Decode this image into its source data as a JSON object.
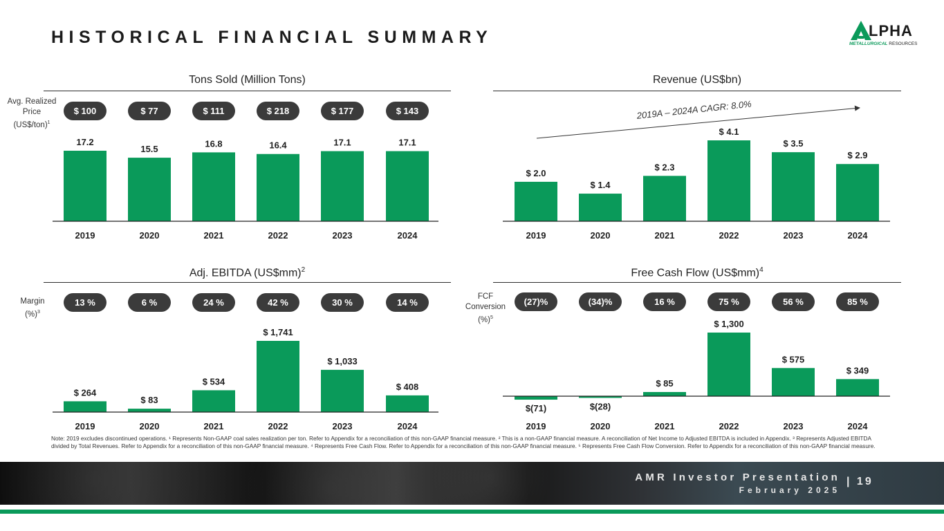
{
  "page": {
    "title": "HISTORICAL FINANCIAL SUMMARY",
    "logo_word": "LPHA",
    "logo_sub_bold": "METALLURGICAL",
    "logo_sub_rest": " RESOURCES",
    "footer_title": "AMR Investor Presentation",
    "footer_date": "February 2025",
    "footer_page": "| 19",
    "footnote": "Note: 2019 excludes discontinued operations. ¹ Represents Non-GAAP coal sales realization per ton. Refer to Appendix for a reconciliation of this non-GAAP financial measure. ² This is a non-GAAP financial measure. A reconciliation of Net Income to Adjusted EBITDA is included in Appendix. ³ Represents Adjusted EBITDA divided by Total Revenues. Refer to Appendix for a reconciliation of this non-GAAP financial measure. ⁴ Represents Free Cash Flow. Refer to Appendix for a reconciliation of this non-GAAP financial measure. ⁵ Represents Free Cash Flow Conversion. Refer to Appendix for a reconciliation of this non-GAAP financial measure."
  },
  "colors": {
    "bar": "#0a9a5a",
    "pill": "#3b3b3b",
    "axis": "#222222"
  },
  "panels": {
    "tons": {
      "title": "Tons Sold (Million Tons)",
      "side_label": "Avg. Realized Price (US$/ton)",
      "side_sup": "1",
      "pills": [
        "$ 100",
        "$ 77",
        "$ 111",
        "$ 218",
        "$ 177",
        "$ 143"
      ]
    },
    "revenue": {
      "title": "Revenue (US$bn)",
      "cagr": "2019A – 2024A CAGR: 8.0%"
    },
    "ebitda": {
      "title": "Adj. EBITDA (US$mm)",
      "title_sup": "2",
      "side_label": "Margin (%)",
      "side_sup": "3",
      "pills": [
        "13 %",
        "6 %",
        "24 %",
        "42 %",
        "30 %",
        "14 %"
      ]
    },
    "fcf": {
      "title": "Free Cash Flow (US$mm)",
      "title_sup": "4",
      "side_label": "FCF Conversion (%)",
      "side_sup": "5",
      "pills": [
        "(27)%",
        "(34)%",
        "16 %",
        "75 %",
        "56 %",
        "85 %"
      ]
    }
  },
  "chart_data": [
    {
      "type": "bar",
      "title": "Tons Sold (Million Tons)",
      "categories": [
        "2019",
        "2020",
        "2021",
        "2022",
        "2023",
        "2024"
      ],
      "values": [
        17.2,
        15.5,
        16.8,
        16.4,
        17.1,
        17.1
      ],
      "labels": [
        "17.2",
        "15.5",
        "16.8",
        "16.4",
        "17.1",
        "17.1"
      ],
      "ylim": [
        0,
        17.2
      ]
    },
    {
      "type": "bar",
      "title": "Revenue (US$bn)",
      "categories": [
        "2019",
        "2020",
        "2021",
        "2022",
        "2023",
        "2024"
      ],
      "values": [
        2.0,
        1.4,
        2.3,
        4.1,
        3.5,
        2.9
      ],
      "labels": [
        "$ 2.0",
        "$ 1.4",
        "$ 2.3",
        "$ 4.1",
        "$ 3.5",
        "$ 2.9"
      ],
      "ylim": [
        0,
        4.1
      ]
    },
    {
      "type": "bar",
      "title": "Adj. EBITDA (US$mm)",
      "categories": [
        "2019",
        "2020",
        "2021",
        "2022",
        "2023",
        "2024"
      ],
      "values": [
        264,
        83,
        534,
        1741,
        1033,
        408
      ],
      "labels": [
        "$ 264",
        "$ 83",
        "$ 534",
        "$ 1,741",
        "$ 1,033",
        "$ 408"
      ],
      "ylim": [
        0,
        1741
      ]
    },
    {
      "type": "bar",
      "title": "Free Cash Flow (US$mm)",
      "categories": [
        "2019",
        "2020",
        "2021",
        "2022",
        "2023",
        "2024"
      ],
      "values": [
        -71,
        -28,
        85,
        1300,
        575,
        349
      ],
      "labels": [
        "$(71)",
        "$(28)",
        "$ 85",
        "$ 1,300",
        "$ 575",
        "$ 349"
      ],
      "ylim": [
        -71,
        1300
      ]
    }
  ]
}
